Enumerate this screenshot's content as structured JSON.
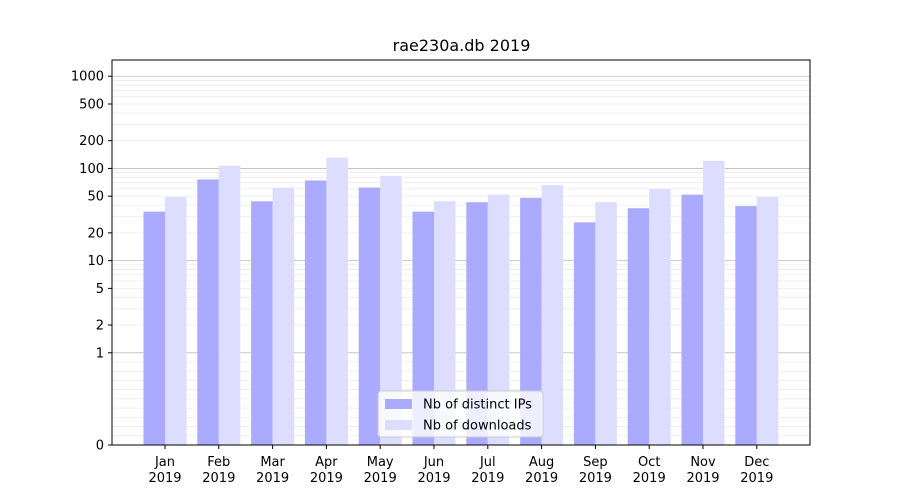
{
  "chart_data": {
    "type": "bar",
    "title": "rae230a.db 2019",
    "xlabel": "",
    "ylabel": "",
    "y_scale": "symlog",
    "y_ticks": [
      0,
      1,
      2,
      5,
      10,
      20,
      50,
      100,
      200,
      500,
      1000
    ],
    "y_tick_labels": [
      "0",
      "1",
      "2",
      "5",
      "10",
      "20",
      "50",
      "100",
      "200",
      "500",
      "1000"
    ],
    "grid": true,
    "legend_position": "bottom-center",
    "categories": [
      "Jan\n2019",
      "Feb\n2019",
      "Mar\n2019",
      "Apr\n2019",
      "May\n2019",
      "Jun\n2019",
      "Jul\n2019",
      "Aug\n2019",
      "Sep\n2019",
      "Oct\n2019",
      "Nov\n2019",
      "Dec\n2019"
    ],
    "series": [
      {
        "name": "Nb of distinct IPs",
        "color": "#aaaaff",
        "values": [
          34,
          76,
          44,
          74,
          62,
          34,
          43,
          48,
          26,
          37,
          52,
          39
        ]
      },
      {
        "name": "Nb of downloads",
        "color": "#ddddff",
        "values": [
          49,
          107,
          62,
          131,
          83,
          44,
          52,
          66,
          43,
          60,
          121,
          49
        ]
      }
    ]
  }
}
